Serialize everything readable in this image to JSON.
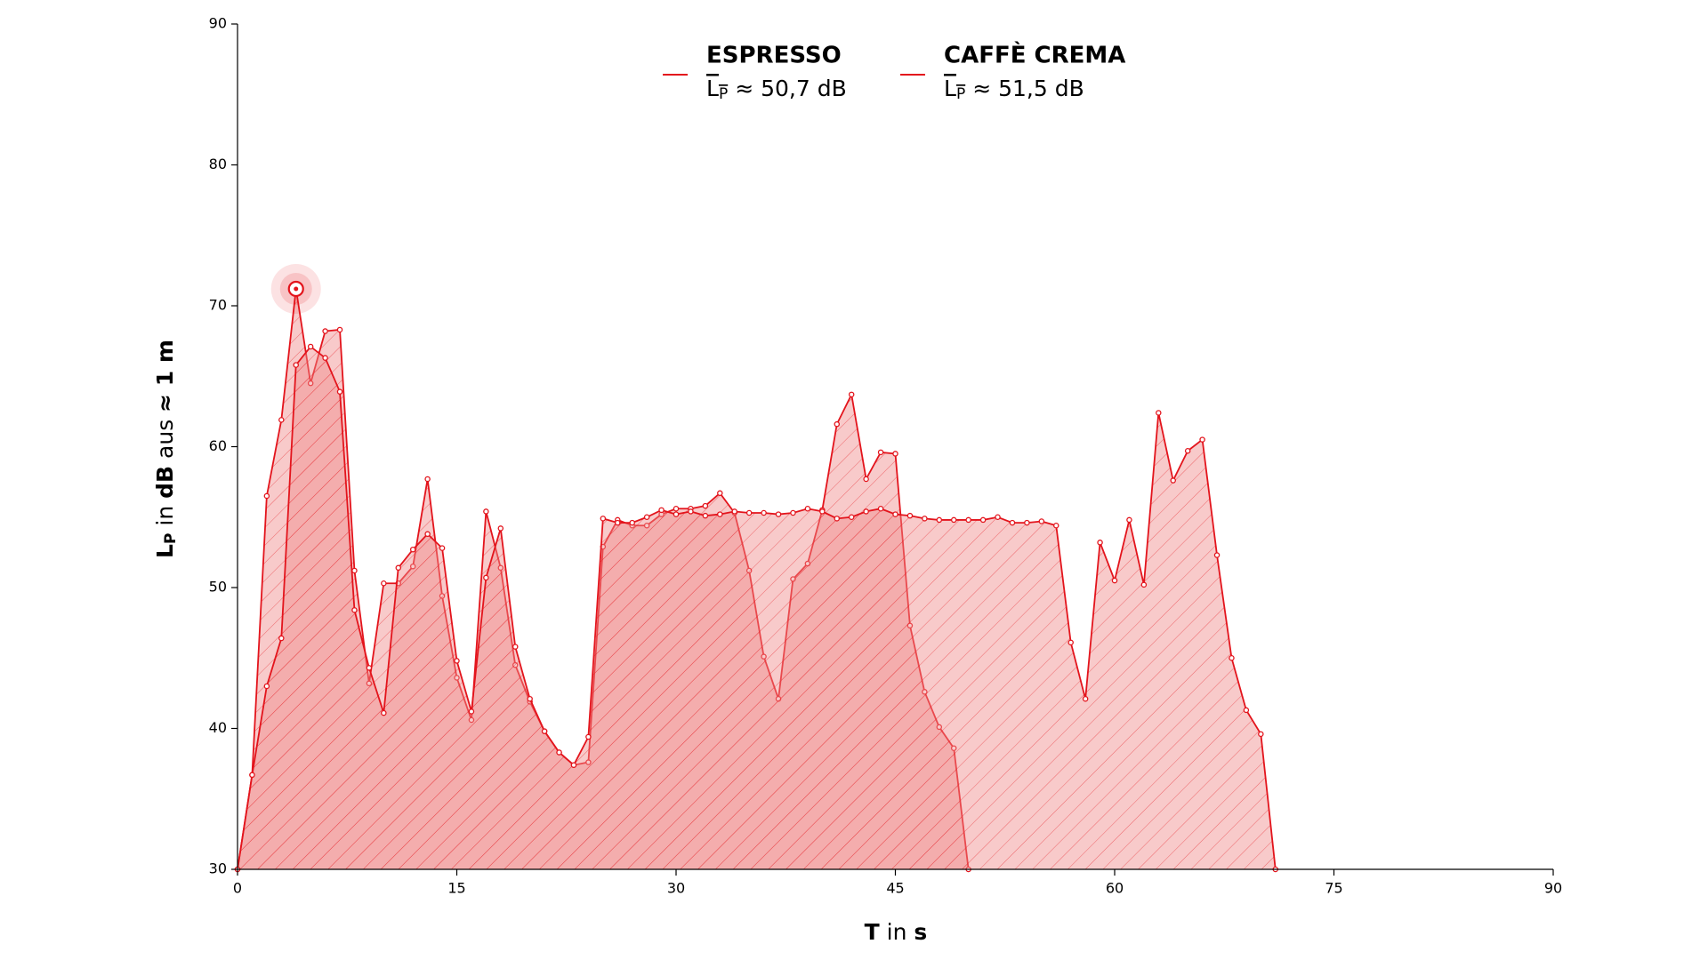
{
  "chart_data": {
    "type": "area",
    "x": [
      0,
      1,
      2,
      3,
      4,
      5,
      6,
      7,
      8,
      9,
      10,
      11,
      12,
      13,
      14,
      15,
      16,
      17,
      18,
      19,
      20,
      21,
      22,
      23,
      24,
      25,
      26,
      27,
      28,
      29,
      30,
      31,
      32,
      33,
      34,
      35,
      36,
      37,
      38,
      39,
      40,
      41,
      42,
      43,
      44,
      45,
      46,
      47,
      48,
      49,
      50,
      51,
      52,
      53,
      54,
      55,
      56,
      57,
      58,
      59,
      60,
      61,
      62,
      63,
      64,
      65,
      66,
      67,
      68,
      69,
      70,
      71
    ],
    "series": [
      {
        "name": "ESPRESSO",
        "color": "#e3141c",
        "fill": "#f08a8a",
        "mean_label": "≈ 50,7 dB",
        "values": [
          30,
          36.7,
          56.5,
          61.9,
          71.2,
          64.5,
          68.2,
          68.3,
          51.2,
          43.2,
          50.3,
          50.3,
          51.5,
          57.7,
          49.4,
          43.6,
          40.6,
          55.4,
          51.4,
          44.5,
          41.9,
          39.8,
          38.3,
          37.4,
          37.6,
          52.9,
          54.8,
          54.4,
          54.4,
          55.2,
          55.6,
          55.6,
          55.8,
          56.7,
          55.3,
          51.2,
          45.1,
          42.1,
          50.6,
          51.7,
          55.5,
          61.6,
          63.7,
          57.7,
          59.6,
          59.5,
          47.3,
          42.6,
          40.1,
          38.6,
          30,
          null,
          null,
          null,
          null,
          null,
          null,
          null,
          null,
          null,
          null,
          null,
          null,
          null,
          null,
          null,
          null,
          null,
          null,
          null,
          null,
          null
        ]
      },
      {
        "name": "CAFFÈ CREMA",
        "color": "#e3141c",
        "fill": "#f08a8a",
        "mean_label": "≈ 51,5 dB",
        "values": [
          30,
          36.7,
          43.0,
          46.4,
          65.8,
          67.1,
          66.3,
          63.9,
          48.4,
          44.3,
          41.1,
          51.4,
          52.7,
          53.8,
          52.8,
          44.8,
          41.2,
          50.7,
          54.2,
          45.8,
          42.1,
          39.8,
          38.3,
          37.4,
          39.4,
          54.9,
          54.6,
          54.6,
          55.0,
          55.5,
          55.2,
          55.4,
          55.1,
          55.2,
          55.4,
          55.3,
          55.3,
          55.2,
          55.3,
          55.6,
          55.4,
          54.9,
          55.0,
          55.4,
          55.6,
          55.2,
          55.1,
          54.9,
          54.8,
          54.8,
          54.8,
          54.8,
          55.0,
          54.6,
          54.6,
          54.7,
          54.4,
          46.1,
          42.1,
          53.2,
          50.5,
          54.8,
          50.2,
          62.4,
          57.6,
          59.7,
          60.5,
          52.3,
          45.0,
          41.3,
          39.6,
          30
        ]
      }
    ],
    "mean_symbol": "L",
    "mean_symbol_sub": "P",
    "xlabel": [
      "T",
      " in ",
      "s"
    ],
    "ylabel": [
      "L",
      "P",
      " in ",
      "dB",
      " aus ",
      "≈ 1 m"
    ],
    "xlim": [
      0,
      90
    ],
    "xticks": [
      0,
      15,
      30,
      45,
      60,
      75,
      90
    ],
    "ylim": [
      30,
      90
    ],
    "yticks": [
      30,
      40,
      50,
      60,
      70,
      80,
      90
    ],
    "highlight_max": true
  }
}
